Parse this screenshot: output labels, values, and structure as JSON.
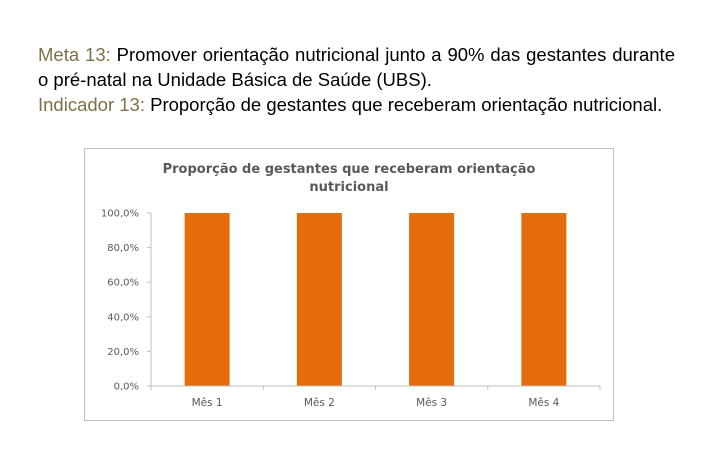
{
  "text": {
    "meta_label": "Meta 13:",
    "meta_text": " Promover orientação nutricional junto a 90% das gestantes durante o pré-natal na Unidade Básica de Saúde (UBS).",
    "indicador_label": "Indicador 13:",
    "indicador_text": " Proporção de gestantes que receberam orientação nutricional."
  },
  "colors": {
    "label": "#7f7045",
    "bar": "#e46c0a",
    "axis": "#bfbfbf",
    "title": "#595959",
    "tick": "#595959"
  },
  "chart_data": {
    "type": "bar",
    "title_lines": [
      "Proporção de gestantes que receberam orientação",
      "nutricional"
    ],
    "categories": [
      "Mês 1",
      "Mês 2",
      "Mês 3",
      "Mês 4"
    ],
    "values": [
      100,
      100,
      100,
      100
    ],
    "ylim": [
      0,
      100
    ],
    "yticks": [
      0,
      20,
      40,
      60,
      80,
      100
    ],
    "ytick_labels": [
      "0,0%",
      "20,0%",
      "40,0%",
      "60,0%",
      "80,0%",
      "100,0%"
    ],
    "grid": false,
    "legend": "none"
  }
}
